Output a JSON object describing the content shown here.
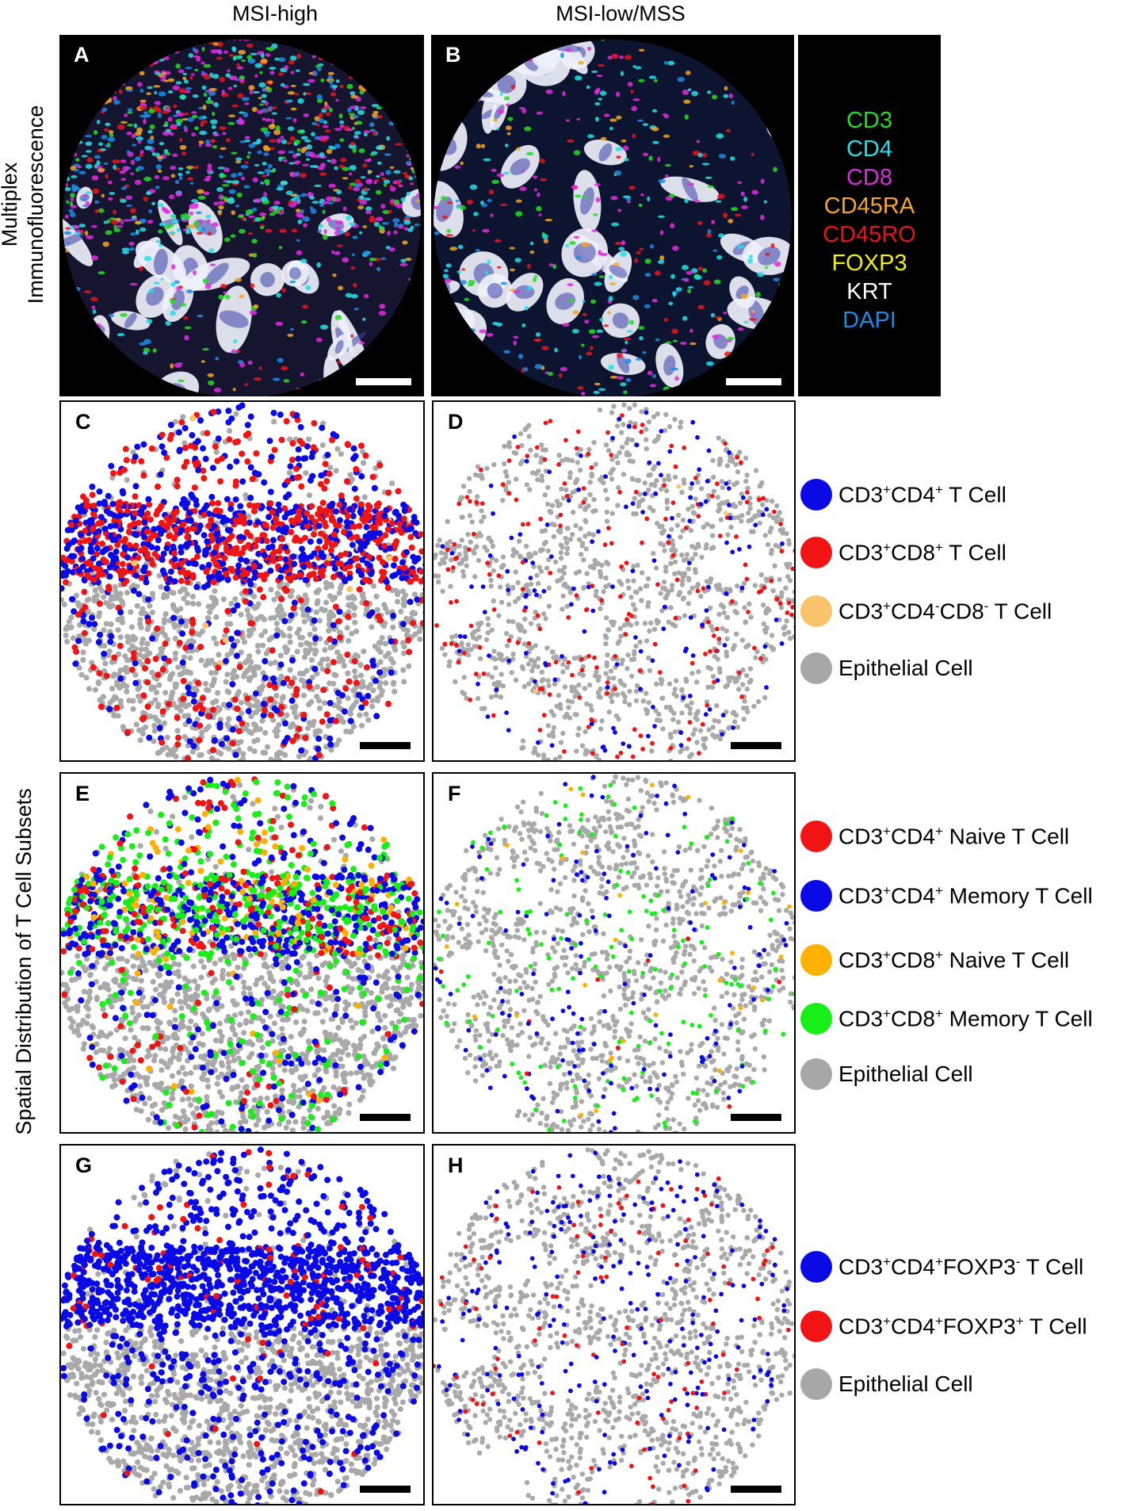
{
  "columns": {
    "left": "MSI-high",
    "right": "MSI-low/MSS"
  },
  "rows": {
    "top": "Multiplex\nImmunofluorescence",
    "bottom": "Spatial Distribution of T Cell Subsets"
  },
  "panels": {
    "A": "A",
    "B": "B",
    "C": "C",
    "D": "D",
    "E": "E",
    "F": "F",
    "G": "G",
    "H": "H"
  },
  "channels": [
    {
      "name": "CD3",
      "color": "#22dd22"
    },
    {
      "name": "CD4",
      "color": "#22e0e8"
    },
    {
      "name": "CD8",
      "color": "#e02adf"
    },
    {
      "name": "CD45RA",
      "color": "#f5a623"
    },
    {
      "name": "CD45RO",
      "color": "#e8141b"
    },
    {
      "name": "FOXP3",
      "color": "#f2f20a"
    },
    {
      "name": "KRT",
      "color": "#ffffff"
    },
    {
      "name": "DAPI",
      "color": "#1c8be6"
    }
  ],
  "legend_cd": [
    {
      "base": "CD3",
      "s1": "+",
      "mid": "CD4",
      "s2": "+",
      "tail": " T Cell",
      "color": "#0a0ae6"
    },
    {
      "base": "CD3",
      "s1": "+",
      "mid": "CD8",
      "s2": "+",
      "tail": " T Cell",
      "color": "#f01414"
    },
    {
      "base": "CD3",
      "s1": "+",
      "mid": "CD4",
      "s2": "-",
      "mid2": "CD8",
      "s3": "-",
      "tail": " T Cell",
      "color": "#fbc46a"
    },
    {
      "tail": "Epithelial Cell",
      "color": "#a7a7a7"
    }
  ],
  "legend_ef": [
    {
      "base": "CD3",
      "s1": "+",
      "mid": "CD4",
      "s2": "+",
      "tail": " Naive T Cell",
      "color": "#f01414"
    },
    {
      "base": "CD3",
      "s1": "+",
      "mid": "CD4",
      "s2": "+",
      "tail": " Memory T Cell",
      "color": "#0a0ae6"
    },
    {
      "base": "CD3",
      "s1": "+",
      "mid": "CD8",
      "s2": "+",
      "tail": " Naive T Cell",
      "color": "#ffb000"
    },
    {
      "base": "CD3",
      "s1": "+",
      "mid": "CD8",
      "s2": "+",
      "tail": " Memory T Cell",
      "color": "#18ee18"
    },
    {
      "tail": "Epithelial Cell",
      "color": "#a7a7a7"
    }
  ],
  "legend_gh": [
    {
      "base": "CD3",
      "s1": "+",
      "mid": "CD4",
      "s2": "+",
      "mid2": "FOXP3",
      "s3": "-",
      "tail": " T Cell",
      "color": "#0a0ae6"
    },
    {
      "base": "CD3",
      "s1": "+",
      "mid": "CD4",
      "s2": "+",
      "mid2": "FOXP3",
      "s3": "+",
      "tail": " T Cell",
      "color": "#f01414"
    },
    {
      "tail": "Epithelial Cell",
      "color": "#a7a7a7"
    }
  ]
}
